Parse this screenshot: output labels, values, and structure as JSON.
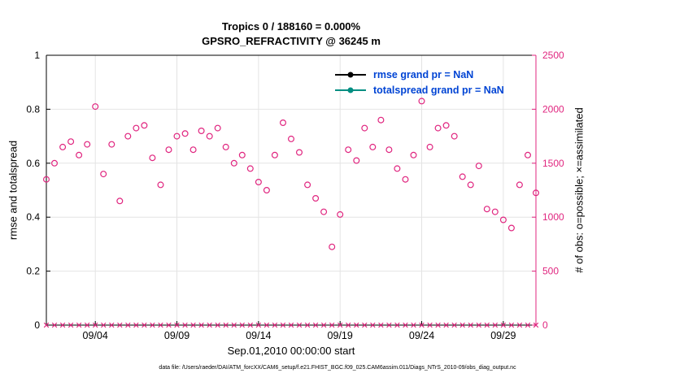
{
  "figure": {
    "title_line1": "Tropics 0 / 188160 = 0.000%",
    "title_line2": "GPSRO_REFRACTIVITY @ 36245 m",
    "xlabel": "Sep.01,2010 00:00:00 start",
    "ylabel_left": "rmse and totalspread",
    "ylabel_right": "# of obs: o=possible; ×=assimilated",
    "footer": "data file: /Users/raeder/DAI/ATM_forcXX/CAM6_setup/f.e21.FHIST_BGC.f09_025.CAM6assim.011/Diags_NTrS_2010-09/obs_diag_output.nc"
  },
  "legend": {
    "text_color": "#0044d4",
    "items": [
      {
        "label": "rmse grand pr = NaN",
        "color": "#000000"
      },
      {
        "label": "totalspread grand pr = NaN",
        "color": "#008e82"
      }
    ]
  },
  "colors": {
    "obs": "#e0257f",
    "grid": "#e4e4e4",
    "axis": "#000000",
    "tick_text_left": "#000000",
    "tick_text_right": "#e0257f"
  },
  "chart_data": {
    "type": "scatter",
    "title": [
      "Tropics 0 / 188160 = 0.000%",
      "GPSRO_REFRACTIVITY @ 36245 m"
    ],
    "xlabel": "Sep.01,2010 00:00:00 start",
    "ylabel_left": "rmse and totalspread",
    "ylabel_right": "# of obs: o=possible; ×=assimilated",
    "grid": true,
    "legend_position": "top-right-inside",
    "x_axis": {
      "range_days": [
        1,
        31
      ],
      "tick_days": [
        4,
        9,
        14,
        19,
        24,
        29
      ],
      "tick_labels": [
        "09/04",
        "09/09",
        "09/14",
        "09/19",
        "09/24",
        "09/29"
      ],
      "start": "Sep.01,2010 00:00:00"
    },
    "left_axis": {
      "label": "rmse and totalspread",
      "range": [
        0,
        1
      ],
      "ticks": [
        0,
        0.2,
        0.4,
        0.6,
        0.8,
        1
      ],
      "tick_labels": [
        "0",
        "0.2",
        "0.4",
        "0.6",
        "0.8",
        "1"
      ]
    },
    "right_axis": {
      "label": "# of obs: o=possible; ×=assimilated",
      "range": [
        0,
        2500
      ],
      "ticks": [
        0,
        500,
        1000,
        1500,
        2000,
        2500
      ],
      "tick_labels": [
        "0",
        "500",
        "1000",
        "1500",
        "2000",
        "2500"
      ]
    },
    "x_days": [
      1,
      1.5,
      2,
      2.5,
      3,
      3.5,
      4,
      4.5,
      5,
      5.5,
      6,
      6.5,
      7,
      7.5,
      8,
      8.5,
      9,
      9.5,
      10,
      10.5,
      11,
      11.5,
      12,
      12.5,
      13,
      13.5,
      14,
      14.5,
      15,
      15.5,
      16,
      16.5,
      17,
      17.5,
      18,
      18.5,
      19,
      19.5,
      20,
      20.5,
      21,
      21.5,
      22,
      22.5,
      23,
      23.5,
      24,
      24.5,
      25,
      25.5,
      26,
      26.5,
      27,
      27.5,
      28,
      28.5,
      29,
      29.5,
      30,
      30.5,
      31
    ],
    "series": [
      {
        "name": "possible obs (o)",
        "marker": "o",
        "axis": "right",
        "color": "#e0257f",
        "values": [
          1350,
          1500,
          1650,
          1700,
          1575,
          1675,
          2025,
          1400,
          1675,
          1150,
          1750,
          1825,
          1850,
          1550,
          1300,
          1625,
          1750,
          1775,
          1625,
          1800,
          1750,
          1825,
          1650,
          1500,
          1575,
          1450,
          1325,
          1250,
          1575,
          1875,
          1725,
          1600,
          1300,
          1175,
          1050,
          725,
          1025,
          1625,
          1525,
          1825,
          1650,
          1900,
          1625,
          1450,
          1350,
          1575,
          2075,
          1650,
          1825,
          1850,
          1750,
          1375,
          1300,
          1475,
          1075,
          1050,
          975,
          900,
          1300,
          1575,
          1225
        ]
      },
      {
        "name": "assimilated obs (×)",
        "marker": "x",
        "axis": "right",
        "color": "#e0257f",
        "values": [
          0,
          0,
          0,
          0,
          0,
          0,
          0,
          0,
          0,
          0,
          0,
          0,
          0,
          0,
          0,
          0,
          0,
          0,
          0,
          0,
          0,
          0,
          0,
          0,
          0,
          0,
          0,
          0,
          0,
          0,
          0,
          0,
          0,
          0,
          0,
          0,
          0,
          0,
          0,
          0,
          0,
          0,
          0,
          0,
          0,
          0,
          0,
          0,
          0,
          0,
          0,
          0,
          0,
          0,
          0,
          0,
          0,
          0,
          0,
          0,
          0
        ]
      },
      {
        "name": "rmse",
        "axis": "left",
        "color": "#000000",
        "grand_prior": "NaN",
        "values": []
      },
      {
        "name": "totalspread",
        "axis": "left",
        "color": "#008e82",
        "grand_prior": "NaN",
        "values": []
      }
    ],
    "stats": {
      "region": "Tropics",
      "assimilated": 0,
      "possible_total": 188160,
      "percent": "0.000%"
    }
  }
}
